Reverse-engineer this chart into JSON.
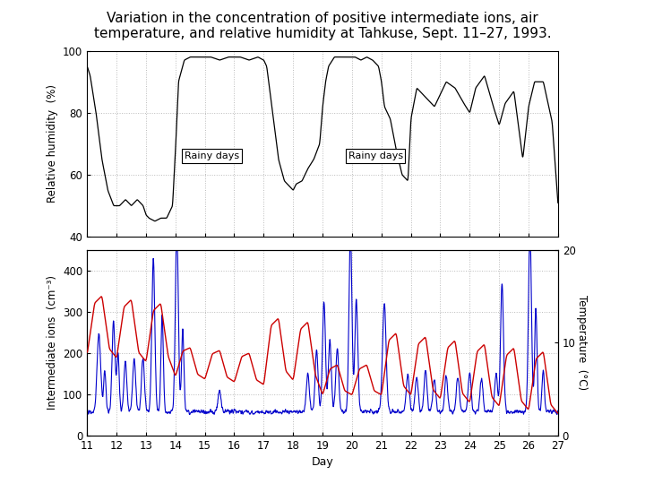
{
  "title_line1": "Variation in the concentration of positive intermediate ions, air",
  "title_line2": "temperature, and relative humidity at Tahkuse, Sept. 11–27, 1993.",
  "title_fontsize": 11,
  "top_ylabel": "Relative humidity  (%)",
  "bottom_ylabel_left": "Intermediate ions  (cm⁻³)",
  "bottom_ylabel_right": "Temperature  (°C)",
  "xlabel": "Day",
  "rh_ylim": [
    40,
    100
  ],
  "rh_yticks": [
    40,
    60,
    80,
    100
  ],
  "ions_ylim": [
    0,
    450
  ],
  "ions_yticks": [
    0,
    100,
    200,
    300,
    400
  ],
  "temp_ylim": [
    0,
    20
  ],
  "temp_yticks": [
    0,
    10,
    20
  ],
  "xlim": [
    11,
    27
  ],
  "xticks": [
    11,
    12,
    13,
    14,
    15,
    16,
    17,
    18,
    19,
    20,
    21,
    22,
    23,
    24,
    25,
    26,
    27
  ],
  "background": "#ffffff",
  "rh_color": "#000000",
  "temp_color": "#cc0000",
  "ions_color": "#0000cc",
  "grid_color": "#bbbbbb",
  "grid_style": ":"
}
